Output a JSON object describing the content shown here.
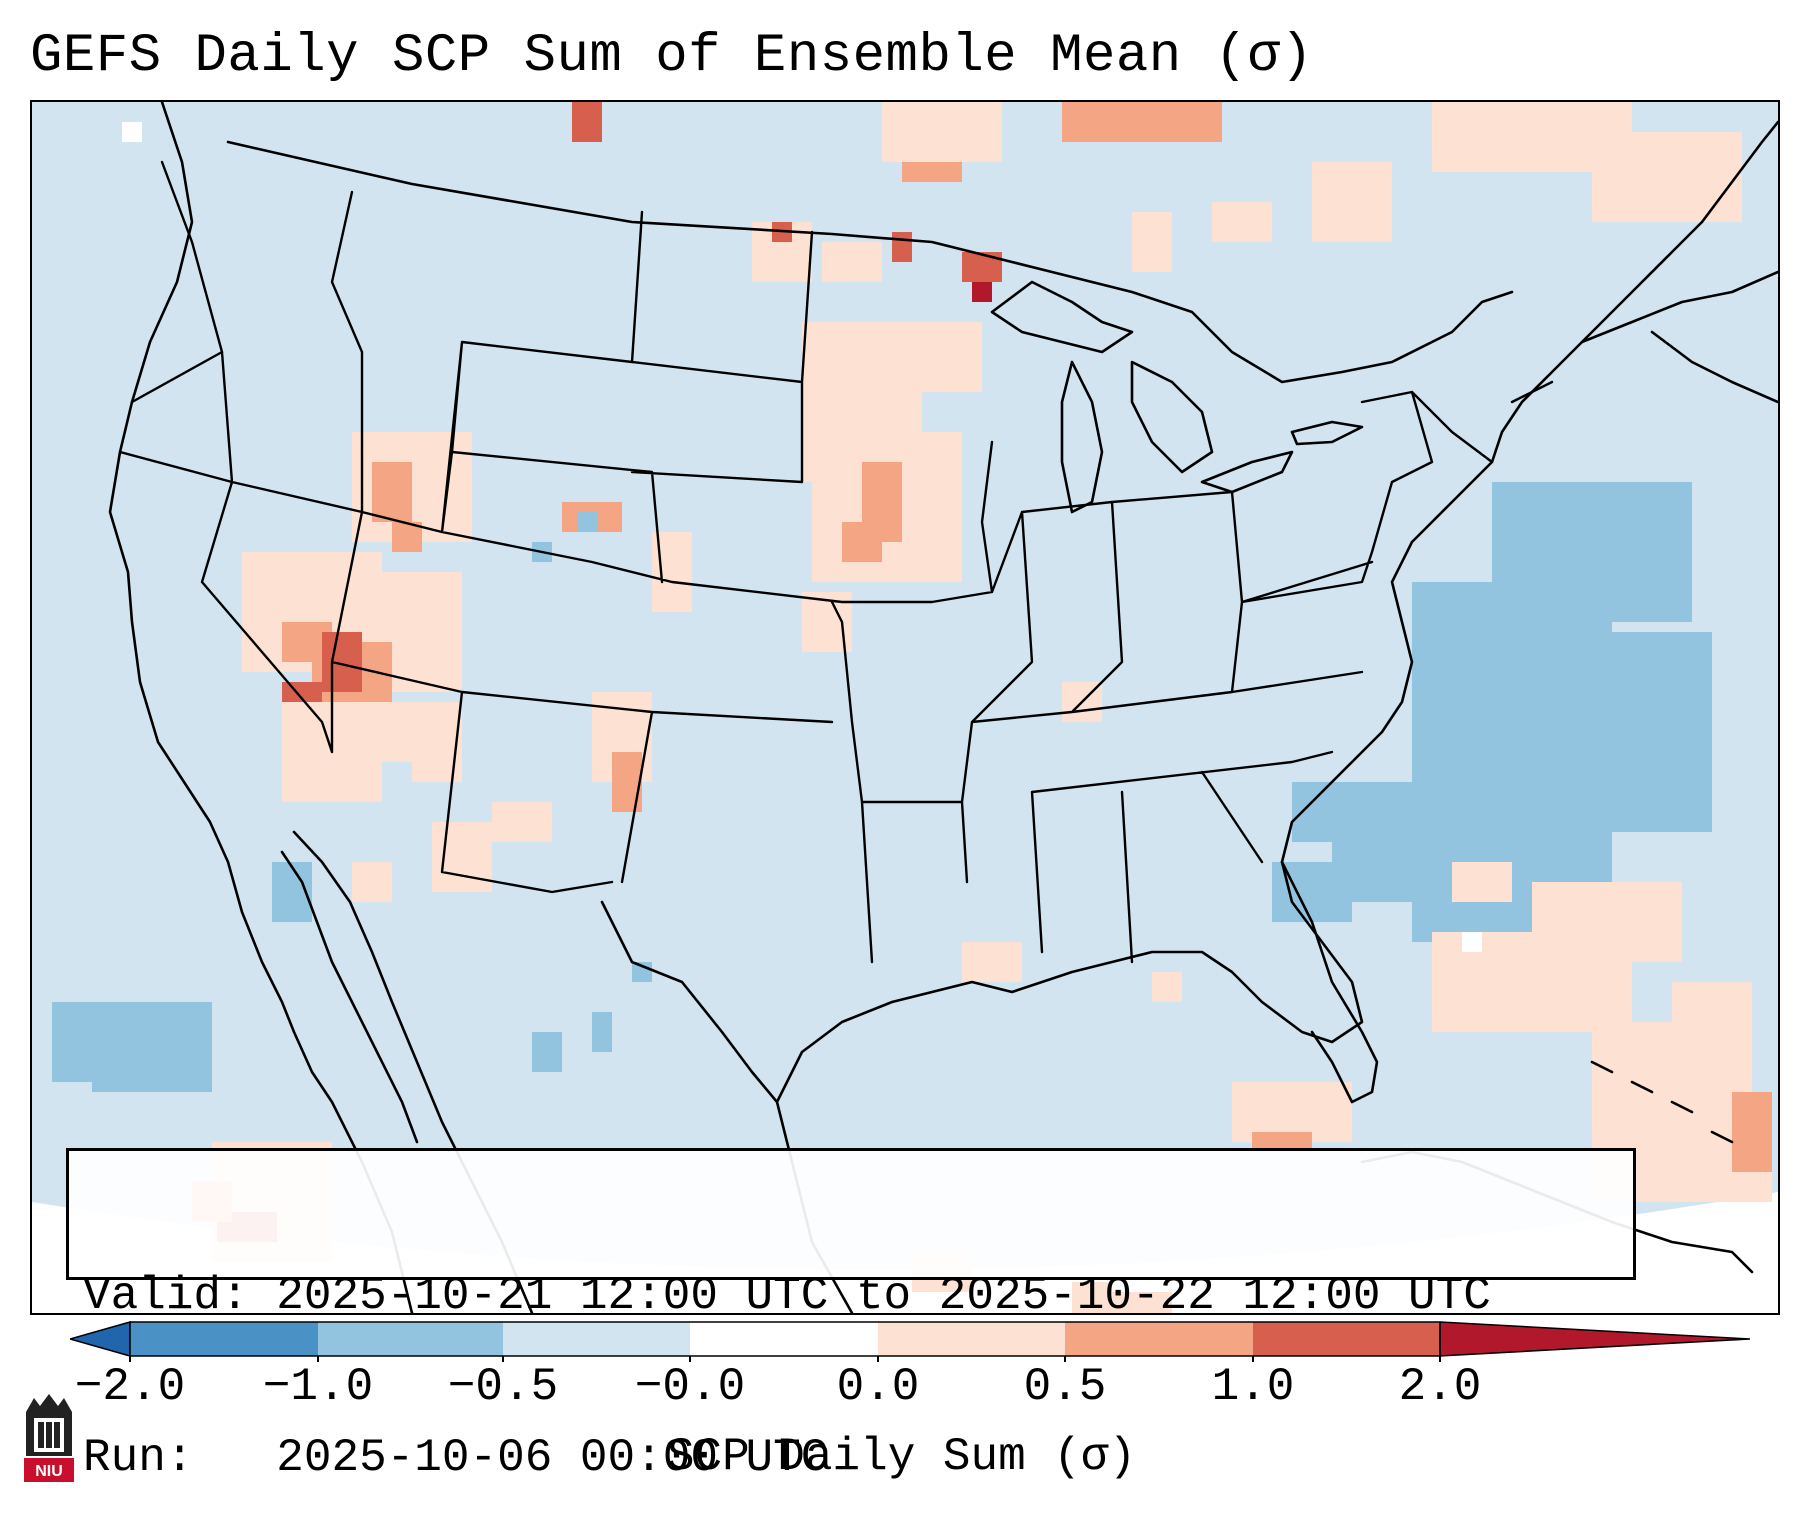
{
  "title": "GEFS Daily SCP Sum of Ensemble Mean (σ)",
  "info": {
    "valid_label": "Valid:",
    "valid_value": "2025-10-21 12:00 UTC to 2025-10-22 12:00 UTC",
    "run_label": "Run:",
    "run_value": "2025-10-06 00:00 UTC"
  },
  "colorbar": {
    "label": "SCP Daily Sum (σ)",
    "ticks": [
      "−2.0",
      "−1.0",
      "−0.5",
      "−0.0",
      "0.0",
      "0.5",
      "1.0",
      "2.0"
    ],
    "bins": [
      {
        "color": "#2b6cb0"
      },
      {
        "color": "#4a91c6"
      },
      {
        "color": "#92c4e0"
      },
      {
        "color": "#d1e4f0"
      },
      {
        "color": "#fde1d2"
      },
      {
        "color": "#f4a583"
      },
      {
        "color": "#d6604d"
      },
      {
        "color": "#b2182b"
      }
    ],
    "extend_left_color": "#2166ac",
    "extend_right_color": "#b2182b"
  },
  "map": {
    "domain_region": "Continental United States",
    "background_color": "#d1e4f0",
    "outline_color": "#000000"
  },
  "logo": {
    "icon": "niu-university-seal-icon",
    "text": "NIU"
  }
}
